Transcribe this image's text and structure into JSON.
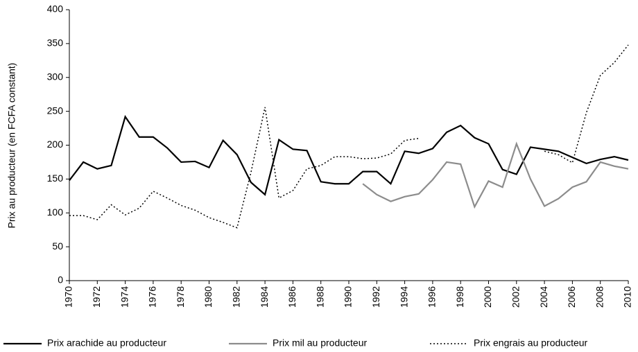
{
  "chart_data": {
    "type": "line",
    "y_label": "Prix au producteur (en FCFA constant)",
    "x": [
      1970,
      1971,
      1972,
      1973,
      1974,
      1975,
      1976,
      1977,
      1978,
      1979,
      1980,
      1981,
      1982,
      1983,
      1984,
      1985,
      1986,
      1987,
      1988,
      1989,
      1990,
      1991,
      1992,
      1993,
      1994,
      1995,
      1996,
      1997,
      1998,
      1999,
      2000,
      2001,
      2002,
      2003,
      2004,
      2005,
      2006,
      2007,
      2008,
      2009,
      2010
    ],
    "xlim": [
      1970,
      2010
    ],
    "xticks": [
      1970,
      1972,
      1974,
      1976,
      1978,
      1980,
      1982,
      1984,
      1986,
      1988,
      1990,
      1992,
      1994,
      1996,
      1998,
      2000,
      2002,
      2004,
      2006,
      2008,
      2010
    ],
    "ylim": [
      0,
      400
    ],
    "yticks": [
      0,
      50,
      100,
      150,
      200,
      250,
      300,
      350,
      400
    ],
    "series": [
      {
        "name": "Prix arachide au producteur",
        "color": "#000000",
        "style": "solid",
        "values": [
          148,
          175,
          165,
          170,
          242,
          212,
          212,
          196,
          175,
          176,
          167,
          207,
          186,
          145,
          127,
          208,
          194,
          192,
          146,
          143,
          143,
          161,
          161,
          143,
          191,
          188,
          195,
          219,
          229,
          211,
          202,
          164,
          157,
          197,
          194,
          191,
          182,
          173,
          179,
          183,
          178
        ]
      },
      {
        "name": "Prix mil au producteur",
        "color": "#8c8c8c",
        "style": "solid",
        "values": [
          null,
          null,
          null,
          null,
          null,
          null,
          null,
          null,
          null,
          null,
          null,
          null,
          null,
          null,
          null,
          null,
          null,
          null,
          null,
          null,
          null,
          143,
          127,
          117,
          124,
          128,
          149,
          175,
          172,
          109,
          147,
          138,
          202,
          150,
          110,
          121,
          138,
          146,
          175,
          169,
          165
        ]
      },
      {
        "name": "Prix engrais au producteur",
        "color": "#000000",
        "style": "dotted",
        "values": [
          96,
          96,
          90,
          112,
          97,
          107,
          132,
          122,
          111,
          104,
          93,
          86,
          78,
          160,
          256,
          122,
          133,
          165,
          170,
          183,
          183,
          180,
          181,
          187,
          207,
          210,
          null,
          null,
          null,
          null,
          null,
          null,
          null,
          null,
          191,
          186,
          174,
          248,
          303,
          322,
          348
        ]
      }
    ]
  }
}
